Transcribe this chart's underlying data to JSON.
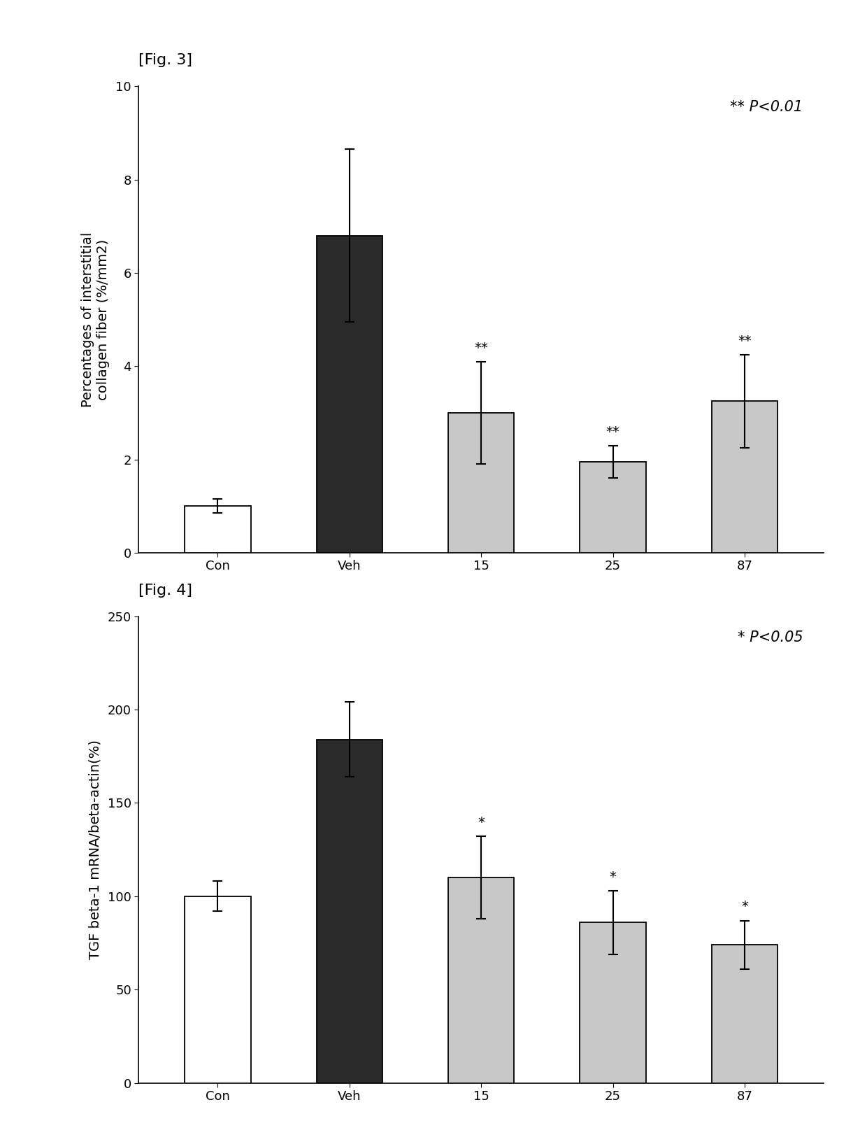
{
  "fig3": {
    "label": "[Fig. 3]",
    "categories": [
      "Con",
      "Veh",
      "15",
      "25",
      "87"
    ],
    "values": [
      1.0,
      6.8,
      3.0,
      1.95,
      3.25
    ],
    "errors": [
      0.15,
      1.85,
      1.1,
      0.35,
      1.0
    ],
    "bar_colors": [
      "#ffffff",
      "#2a2a2a",
      "#c8c8c8",
      "#c8c8c8",
      "#c8c8c8"
    ],
    "bar_edge_colors": [
      "#000000",
      "#000000",
      "#000000",
      "#000000",
      "#000000"
    ],
    "ylabel_line1": "Percentages of interstitial",
    "ylabel_line2": "collagen fiber (%/mm2)",
    "ylim": [
      0,
      10
    ],
    "yticks": [
      0,
      2,
      4,
      6,
      8,
      10
    ],
    "sig_label": "** P<0.01",
    "sig_positions": [
      null,
      null,
      "**",
      "**",
      "**"
    ]
  },
  "fig4": {
    "label": "[Fig. 4]",
    "categories": [
      "Con",
      "Veh",
      "15",
      "25",
      "87"
    ],
    "values": [
      100.0,
      184.0,
      110.0,
      86.0,
      74.0
    ],
    "errors": [
      8.0,
      20.0,
      22.0,
      17.0,
      13.0
    ],
    "bar_colors": [
      "#ffffff",
      "#2a2a2a",
      "#c8c8c8",
      "#c8c8c8",
      "#c8c8c8"
    ],
    "bar_edge_colors": [
      "#000000",
      "#000000",
      "#000000",
      "#000000",
      "#000000"
    ],
    "ylabel": "TGF beta-1 mRNA/beta-actin(%)",
    "ylim": [
      0,
      250
    ],
    "yticks": [
      0,
      50,
      100,
      150,
      200,
      250
    ],
    "sig_label": "* P<0.05",
    "sig_positions": [
      null,
      null,
      "*",
      "*",
      "*"
    ]
  },
  "background_color": "#ffffff",
  "bar_width": 0.5,
  "fontsize_label": 14,
  "fontsize_tick": 13,
  "fontsize_sig_marker": 14,
  "fontsize_sig_label": 15,
  "fontsize_fig_label": 16
}
